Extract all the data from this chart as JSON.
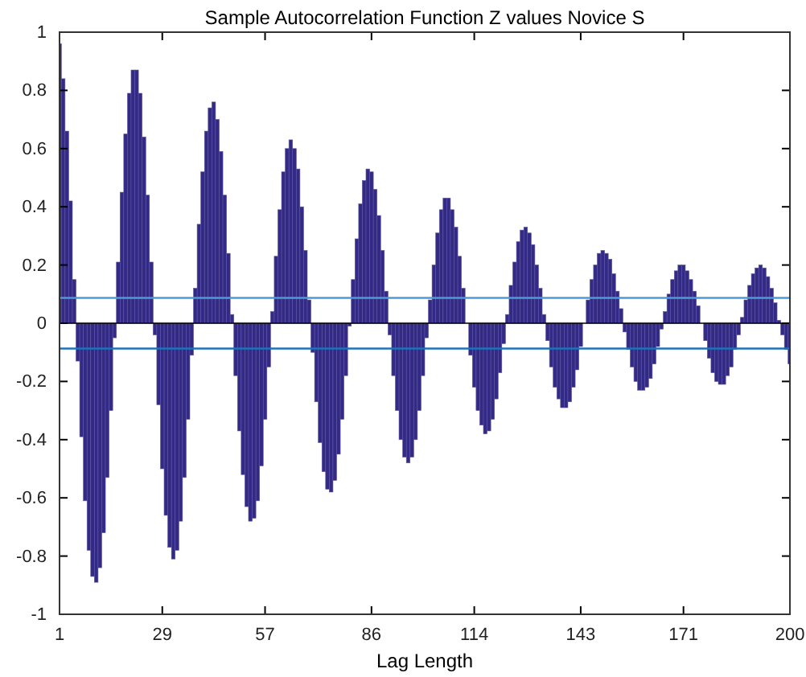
{
  "chart_data": {
    "type": "bar",
    "title": "Sample Autocorrelation Function Z values Novice S",
    "xlabel": "Lag Length",
    "x": [
      1,
      2,
      3,
      4,
      5,
      6,
      7,
      8,
      9,
      10,
      11,
      12,
      13,
      14,
      15,
      16,
      17,
      18,
      19,
      20,
      21,
      22,
      23,
      24,
      25,
      26,
      27,
      28,
      29,
      30,
      31,
      32,
      33,
      34,
      35,
      36,
      37,
      38,
      39,
      40,
      41,
      42,
      43,
      44,
      45,
      46,
      47,
      48,
      49,
      50,
      51,
      52,
      53,
      54,
      55,
      56,
      57,
      58,
      59,
      60,
      61,
      62,
      63,
      64,
      65,
      66,
      67,
      68,
      69,
      70,
      71,
      72,
      73,
      74,
      75,
      76,
      77,
      78,
      79,
      80,
      81,
      82,
      83,
      84,
      85,
      86,
      87,
      88,
      89,
      90,
      91,
      92,
      93,
      94,
      95,
      96,
      97,
      98,
      99,
      100,
      101,
      102,
      103,
      104,
      105,
      106,
      107,
      108,
      109,
      110,
      111,
      112,
      113,
      114,
      115,
      116,
      117,
      118,
      119,
      120,
      121,
      122,
      123,
      124,
      125,
      126,
      127,
      128,
      129,
      130,
      131,
      132,
      133,
      134,
      135,
      136,
      137,
      138,
      139,
      140,
      141,
      142,
      143,
      144,
      145,
      146,
      147,
      148,
      149,
      150,
      151,
      152,
      153,
      154,
      155,
      156,
      157,
      158,
      159,
      160,
      161,
      162,
      163,
      164,
      165,
      166,
      167,
      168,
      169,
      170,
      171,
      172,
      173,
      174,
      175,
      176,
      177,
      178,
      179,
      180,
      181,
      182,
      183,
      184,
      185,
      186,
      187,
      188,
      189,
      190,
      191,
      192,
      193,
      194,
      195,
      196,
      197,
      198,
      199,
      200
    ],
    "values": [
      0.96,
      0.84,
      0.66,
      0.42,
      0.15,
      -0.13,
      -0.39,
      -0.61,
      -0.78,
      -0.87,
      -0.89,
      -0.84,
      -0.72,
      -0.53,
      -0.3,
      -0.05,
      0.21,
      0.45,
      0.65,
      0.79,
      0.87,
      0.87,
      0.79,
      0.64,
      0.44,
      0.21,
      -0.04,
      -0.28,
      -0.5,
      -0.66,
      -0.77,
      -0.81,
      -0.78,
      -0.68,
      -0.53,
      -0.33,
      -0.11,
      0.12,
      0.34,
      0.52,
      0.66,
      0.74,
      0.76,
      0.7,
      0.59,
      0.44,
      0.24,
      0.03,
      -0.18,
      -0.37,
      -0.52,
      -0.63,
      -0.68,
      -0.67,
      -0.61,
      -0.49,
      -0.33,
      -0.15,
      0.04,
      0.23,
      0.39,
      0.52,
      0.6,
      0.63,
      0.6,
      0.53,
      0.4,
      0.25,
      0.08,
      -0.1,
      -0.27,
      -0.41,
      -0.51,
      -0.57,
      -0.58,
      -0.54,
      -0.45,
      -0.33,
      -0.18,
      -0.01,
      0.15,
      0.29,
      0.41,
      0.49,
      0.53,
      0.52,
      0.46,
      0.37,
      0.25,
      0.11,
      -0.04,
      -0.18,
      -0.3,
      -0.4,
      -0.46,
      -0.48,
      -0.46,
      -0.4,
      -0.3,
      -0.18,
      -0.05,
      0.08,
      0.2,
      0.31,
      0.39,
      0.43,
      0.43,
      0.39,
      0.33,
      0.23,
      0.12,
      0.0,
      -0.11,
      -0.22,
      -0.3,
      -0.35,
      -0.38,
      -0.37,
      -0.33,
      -0.26,
      -0.17,
      -0.07,
      0.03,
      0.13,
      0.21,
      0.28,
      0.32,
      0.33,
      0.31,
      0.27,
      0.2,
      0.12,
      0.03,
      -0.06,
      -0.15,
      -0.22,
      -0.26,
      -0.29,
      -0.29,
      -0.27,
      -0.22,
      -0.16,
      -0.08,
      0.0,
      0.08,
      0.15,
      0.2,
      0.24,
      0.25,
      0.24,
      0.22,
      0.17,
      0.11,
      0.05,
      -0.03,
      -0.09,
      -0.15,
      -0.2,
      -0.23,
      -0.23,
      -0.22,
      -0.19,
      -0.14,
      -0.08,
      -0.02,
      0.04,
      0.1,
      0.15,
      0.18,
      0.2,
      0.2,
      0.18,
      0.15,
      0.11,
      0.06,
      0.0,
      -0.06,
      -0.12,
      -0.17,
      -0.2,
      -0.21,
      -0.21,
      -0.18,
      -0.15,
      -0.09,
      -0.04,
      0.02,
      0.08,
      0.13,
      0.17,
      0.19,
      0.2,
      0.19,
      0.16,
      0.12,
      0.07,
      0.01,
      -0.04,
      -0.09,
      -0.14
    ],
    "color": "#332a85",
    "xlim": [
      1,
      200
    ],
    "xticks": [
      1,
      29,
      57,
      86,
      114,
      143,
      171,
      200
    ],
    "ylim": [
      -1,
      1
    ],
    "yticks": [
      -1,
      -0.8,
      -0.6,
      -0.4,
      -0.2,
      0,
      0.2,
      0.4,
      0.6,
      0.8,
      1
    ],
    "ref_lines": [
      {
        "axis": "y",
        "value": 0.087,
        "color": "#4a9bd6"
      },
      {
        "axis": "y",
        "value": -0.087,
        "color": "#1f72b8"
      }
    ]
  }
}
